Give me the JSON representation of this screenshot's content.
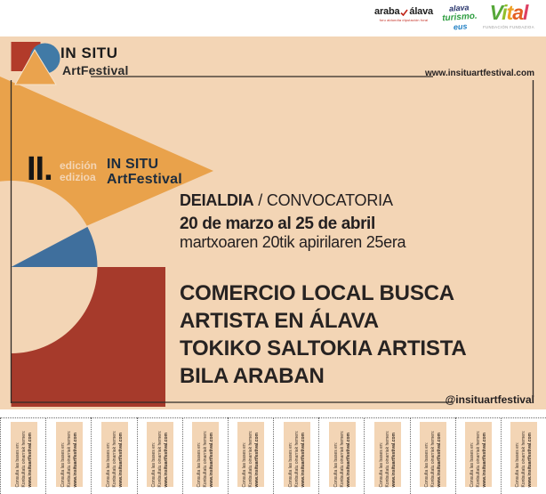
{
  "sponsors": {
    "araba": {
      "name_left": "araba",
      "name_right": "álava",
      "tagline": "foru aldundia  diputación foral"
    },
    "turismo": {
      "line1": "alava",
      "line2": "turismo.",
      "line3": "eus"
    },
    "vital": {
      "name": "Vital",
      "letter_colors": [
        "#56a839",
        "#92bf2c",
        "#eda024",
        "#e45f22",
        "#dd3f63"
      ],
      "tagline": "FUNDACIÓN FUNDAZIOA"
    }
  },
  "brand": {
    "title": "IN SITU",
    "subtitle": "ArtFestival",
    "website": "www.insituartfestival.com",
    "social": "@insituartfestival"
  },
  "edition": {
    "numeral": "II.",
    "label_es": "edición",
    "label_eu": "edizioa",
    "title": "IN SITU",
    "subtitle": "ArtFestival"
  },
  "announcement": {
    "call_bold": "DEIALDIA",
    "call_sep": " / ",
    "call_rest": "CONVOCATORIA",
    "dates_es": "20 de marzo al 25 de abril",
    "dates_eu": "martxoaren 20tik apirilaren 25era",
    "headline": [
      "COMERCIO LOCAL BUSCA",
      "ARTISTA EN ÁLAVA",
      "TOKIKO SALTOKIA ARTISTA",
      "BILA ARABAN"
    ]
  },
  "tearoff": {
    "count": 12,
    "line_es": "Consulta las bases en:",
    "line_eu": "Kontsultatu oinarriak hemen:",
    "line_web": "www.insituartfestival.com"
  },
  "colors": {
    "background": "#f3d5b5",
    "orange": "#e9a24b",
    "maroon": "#a63a2b",
    "blue": "#3f6f9d",
    "navy": "#1c2c3e",
    "ink": "#262221"
  }
}
